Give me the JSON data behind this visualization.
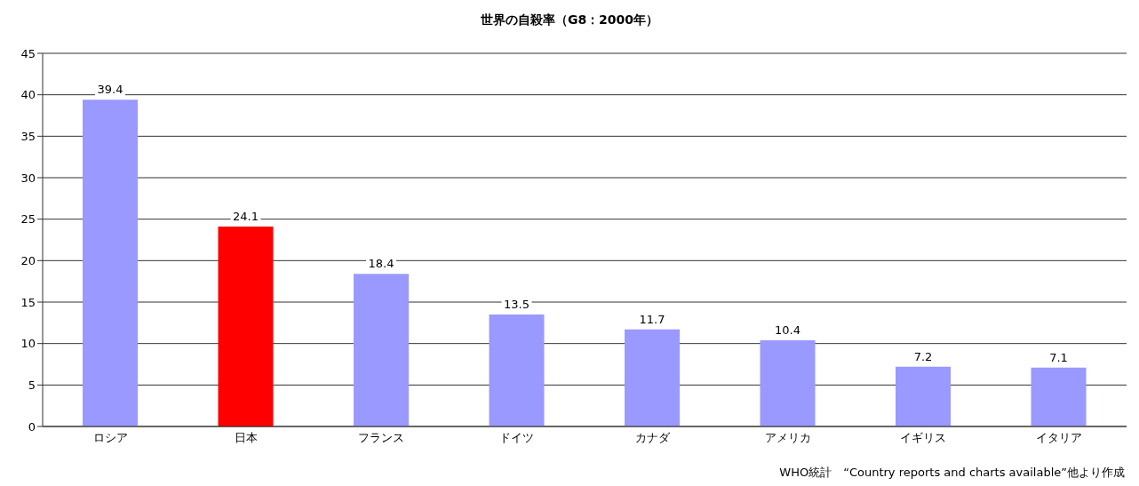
{
  "chart_data": {
    "type": "bar",
    "title": "世界の自殺率（G8：2000年）",
    "categories": [
      "ロシア",
      "日本",
      "フランス",
      "ドイツ",
      "カナダ",
      "アメリカ",
      "イギリス",
      "イタリア"
    ],
    "values": [
      39.4,
      24.1,
      18.4,
      13.5,
      11.7,
      10.4,
      7.2,
      7.1
    ],
    "colors": [
      "#9999ff",
      "#ff0000",
      "#9999ff",
      "#9999ff",
      "#9999ff",
      "#9999ff",
      "#9999ff",
      "#9999ff"
    ],
    "ylim": [
      0,
      45
    ],
    "yticks": [
      0,
      5,
      10,
      15,
      20,
      25,
      30,
      35,
      40,
      45
    ],
    "grid": "y",
    "data_labels": true,
    "annotations": [
      "WHO統計　“Country reports and charts available”他より作成"
    ]
  }
}
